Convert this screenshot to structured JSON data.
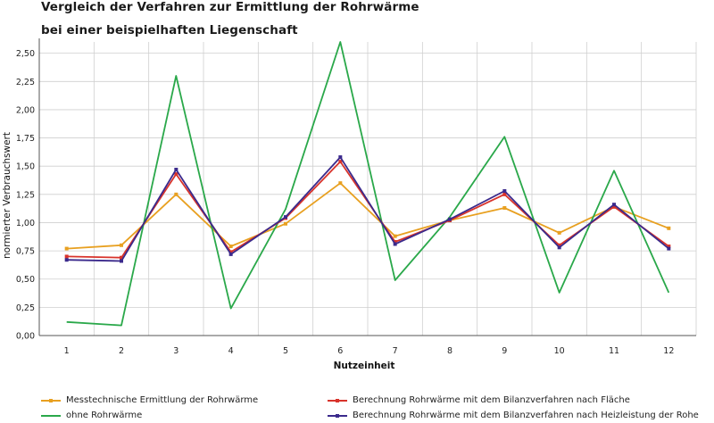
{
  "chart_data": {
    "type": "line",
    "title_line1": "Vergleich der Verfahren zur Ermittlung der Rohrwärme",
    "title_line2": "bei einer beispielhaften Liegenschaft",
    "xlabel": "Nutzeinheit",
    "ylabel": "normierter Verbrauchswert",
    "x": [
      "1",
      "2",
      "3",
      "4",
      "5",
      "6",
      "7",
      "8",
      "9",
      "10",
      "11",
      "12"
    ],
    "ylim": [
      0,
      2.6
    ],
    "yticks": [
      "0,00",
      "0,25",
      "0,50",
      "0,75",
      "1,00",
      "1,25",
      "1,50",
      "1,75",
      "2,00",
      "2,25",
      "2,50"
    ],
    "ytick_values": [
      0,
      0.25,
      0.5,
      0.75,
      1.0,
      1.25,
      1.5,
      1.75,
      2.0,
      2.25,
      2.5
    ],
    "grid": true,
    "legend_position": "bottom",
    "series": [
      {
        "name": "Messtechnische Ermittlung der Rohrwärme",
        "color": "#e8a020",
        "markers": true,
        "values": [
          0.77,
          0.8,
          1.25,
          0.79,
          0.99,
          1.35,
          0.88,
          1.02,
          1.13,
          0.91,
          1.14,
          0.95
        ]
      },
      {
        "name": "ohne Rohrwärme",
        "color": "#2aa84a",
        "markers": false,
        "values": [
          0.12,
          0.09,
          2.3,
          0.24,
          1.12,
          2.6,
          0.49,
          1.05,
          1.76,
          0.38,
          1.46,
          0.38
        ]
      },
      {
        "name": "Berechnung Rohrwärme mit dem Bilanzverfahren nach Fläche",
        "color": "#d8332b",
        "markers": true,
        "values": [
          0.7,
          0.69,
          1.43,
          0.74,
          1.04,
          1.54,
          0.83,
          1.02,
          1.25,
          0.8,
          1.14,
          0.79
        ]
      },
      {
        "name": "Berechnung Rohrwärme mit dem Bilanzverfahren nach Heizleistung der Rohe",
        "color": "#3b2a8c",
        "markers": true,
        "values": [
          0.67,
          0.66,
          1.47,
          0.72,
          1.05,
          1.58,
          0.81,
          1.03,
          1.28,
          0.78,
          1.16,
          0.77
        ]
      }
    ]
  }
}
